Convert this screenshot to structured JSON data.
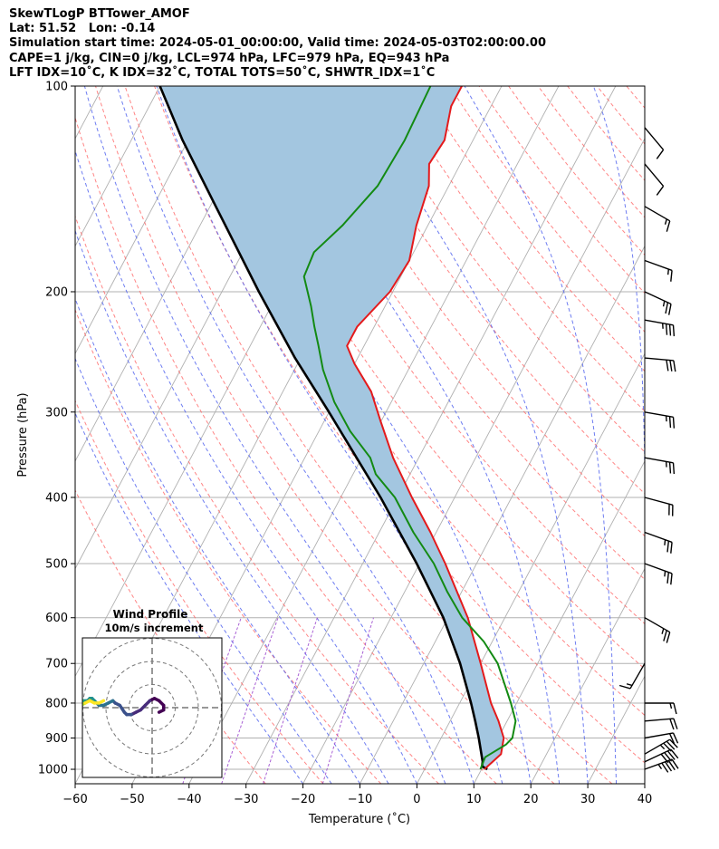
{
  "header": {
    "line1": "SkewTLogP BTTower_AMOF",
    "line2": "Lat: 51.52   Lon: -0.14",
    "line3": "Simulation start time: 2024-05-01_00:00:00, Valid time: 2024-05-03T02:00:00.00",
    "line4": "CAPE=1 j/kg, CIN=0 j/kg, LCL=974 hPa, LFC=979 hPa, EQ=943 hPa",
    "line5": "LFT IDX=10˚C, K IDX=32˚C, TOTAL TOTS=50˚C, SHWTR_IDX=1˚C"
  },
  "colors": {
    "temperature": "#e41a1c",
    "dewpoint": "#138a13",
    "parcel": "#000000",
    "cape_fill": "#a3c6e0",
    "dry_adiabat": "#ff6666",
    "moist_adiabat": "#5566ee",
    "mixing_ratio": "#a050d0",
    "isotherm": "#b0b0b0"
  },
  "chart_data": {
    "type": "skewt",
    "xlabel": "Temperature (˚C)",
    "ylabel": "Pressure (hPa)",
    "xlim": [
      -60,
      40
    ],
    "ylim": [
      1050,
      100
    ],
    "x_ticks": [
      "−60",
      "−50",
      "−40",
      "−30",
      "−20",
      "−10",
      "0",
      "10",
      "20",
      "30",
      "40"
    ],
    "y_ticks": [
      "100",
      "200",
      "300",
      "400",
      "500",
      "600",
      "700",
      "800",
      "900",
      "1000"
    ],
    "temperature_profile": [
      {
        "p": 1000,
        "t": 10.5
      },
      {
        "p": 950,
        "t": 12.0
      },
      {
        "p": 900,
        "t": 11.0
      },
      {
        "p": 850,
        "t": 8.5
      },
      {
        "p": 800,
        "t": 5.5
      },
      {
        "p": 700,
        "t": 0.0
      },
      {
        "p": 600,
        "t": -6.5
      },
      {
        "p": 500,
        "t": -15.5
      },
      {
        "p": 450,
        "t": -21.0
      },
      {
        "p": 400,
        "t": -27.5
      },
      {
        "p": 350,
        "t": -34.5
      },
      {
        "p": 310,
        "t": -40.0
      },
      {
        "p": 280,
        "t": -44.5
      },
      {
        "p": 255,
        "t": -50.0
      },
      {
        "p": 240,
        "t": -53.0
      },
      {
        "p": 225,
        "t": -53.0
      },
      {
        "p": 200,
        "t": -50.5
      },
      {
        "p": 180,
        "t": -50.0
      },
      {
        "p": 160,
        "t": -52.0
      },
      {
        "p": 140,
        "t": -53.5
      },
      {
        "p": 130,
        "t": -55.5
      },
      {
        "p": 120,
        "t": -55.0
      },
      {
        "p": 107,
        "t": -57.0
      },
      {
        "p": 100,
        "t": -57.0
      }
    ],
    "dewpoint_profile": [
      {
        "p": 1000,
        "t": 9.8
      },
      {
        "p": 960,
        "t": 9.5
      },
      {
        "p": 920,
        "t": 12.0
      },
      {
        "p": 900,
        "t": 12.5
      },
      {
        "p": 850,
        "t": 11.5
      },
      {
        "p": 800,
        "t": 9.0
      },
      {
        "p": 700,
        "t": 3.0
      },
      {
        "p": 650,
        "t": -1.5
      },
      {
        "p": 600,
        "t": -7.5
      },
      {
        "p": 550,
        "t": -12.5
      },
      {
        "p": 500,
        "t": -17.5
      },
      {
        "p": 450,
        "t": -24.0
      },
      {
        "p": 400,
        "t": -30.5
      },
      {
        "p": 370,
        "t": -36.0
      },
      {
        "p": 350,
        "t": -38.5
      },
      {
        "p": 320,
        "t": -44.5
      },
      {
        "p": 290,
        "t": -50.0
      },
      {
        "p": 260,
        "t": -55.0
      },
      {
        "p": 240,
        "t": -58.0
      },
      {
        "p": 225,
        "t": -60.5
      },
      {
        "p": 210,
        "t": -63.0
      },
      {
        "p": 190,
        "t": -67.0
      },
      {
        "p": 175,
        "t": -67.5
      },
      {
        "p": 160,
        "t": -65.0
      },
      {
        "p": 140,
        "t": -62.5
      },
      {
        "p": 120,
        "t": -62.0
      },
      {
        "p": 100,
        "t": -62.5
      }
    ],
    "parcel_profile": [
      {
        "p": 1000,
        "t": 11.0
      },
      {
        "p": 990,
        "t": 9.8
      },
      {
        "p": 975,
        "t": 9.5
      },
      {
        "p": 900,
        "t": 6.6
      },
      {
        "p": 850,
        "t": 4.4
      },
      {
        "p": 800,
        "t": 2.0
      },
      {
        "p": 700,
        "t": -3.6
      },
      {
        "p": 600,
        "t": -10.8
      },
      {
        "p": 500,
        "t": -20.5
      },
      {
        "p": 400,
        "t": -33.0
      },
      {
        "p": 300,
        "t": -50.0
      },
      {
        "p": 250,
        "t": -61.0
      },
      {
        "p": 200,
        "t": -73.5
      },
      {
        "p": 150,
        "t": -89.0
      },
      {
        "p": 120,
        "t": -101.0
      },
      {
        "p": 100,
        "t": -110.0
      }
    ],
    "wind_barbs": [
      {
        "p": 1000,
        "speed_kt": 45,
        "dir": 250
      },
      {
        "p": 975,
        "speed_kt": 40,
        "dir": 245
      },
      {
        "p": 950,
        "speed_kt": 35,
        "dir": 240
      },
      {
        "p": 900,
        "speed_kt": 20,
        "dir": 260
      },
      {
        "p": 850,
        "speed_kt": 20,
        "dir": 265
      },
      {
        "p": 800,
        "speed_kt": 15,
        "dir": 270
      },
      {
        "p": 700,
        "speed_kt": 15,
        "dir": 30
      },
      {
        "p": 600,
        "speed_kt": 25,
        "dir": 300
      },
      {
        "p": 500,
        "speed_kt": 25,
        "dir": 290
      },
      {
        "p": 450,
        "speed_kt": 25,
        "dir": 290
      },
      {
        "p": 400,
        "speed_kt": 20,
        "dir": 285
      },
      {
        "p": 350,
        "speed_kt": 25,
        "dir": 280
      },
      {
        "p": 300,
        "speed_kt": 25,
        "dir": 280
      },
      {
        "p": 250,
        "speed_kt": 30,
        "dir": 275
      },
      {
        "p": 220,
        "speed_kt": 35,
        "dir": 280
      },
      {
        "p": 200,
        "speed_kt": 25,
        "dir": 295
      },
      {
        "p": 180,
        "speed_kt": 15,
        "dir": 290
      },
      {
        "p": 150,
        "speed_kt": 15,
        "dir": 300
      },
      {
        "p": 130,
        "speed_kt": 10,
        "dir": 320
      },
      {
        "p": 115,
        "speed_kt": 10,
        "dir": 320
      }
    ],
    "hodograph": {
      "title": "Wind Profile",
      "subtitle": "10m/s increment",
      "rings_ms": [
        10,
        20,
        30
      ],
      "u": [
        3,
        5,
        5,
        3,
        1,
        -1,
        -3,
        -5,
        -7,
        -9,
        -11,
        -12,
        -14,
        -16,
        -17,
        -19,
        -21,
        -23,
        -24,
        -25,
        -26,
        -27,
        -28,
        -30,
        -32,
        -34,
        -36,
        -38,
        -39,
        -40,
        -40,
        -39,
        -37,
        -35,
        -33,
        -31,
        -29,
        -27,
        -25,
        -23,
        -21
      ],
      "v": [
        -2,
        -1,
        1,
        3,
        4,
        3,
        1,
        -1,
        -2,
        -3,
        -3,
        -2,
        1,
        2,
        3,
        2,
        1,
        1,
        2,
        3,
        4,
        4,
        3,
        3,
        3,
        4,
        4,
        3,
        2,
        1,
        0,
        0,
        1,
        1,
        0,
        1,
        2,
        3,
        2,
        2,
        3
      ]
    }
  }
}
